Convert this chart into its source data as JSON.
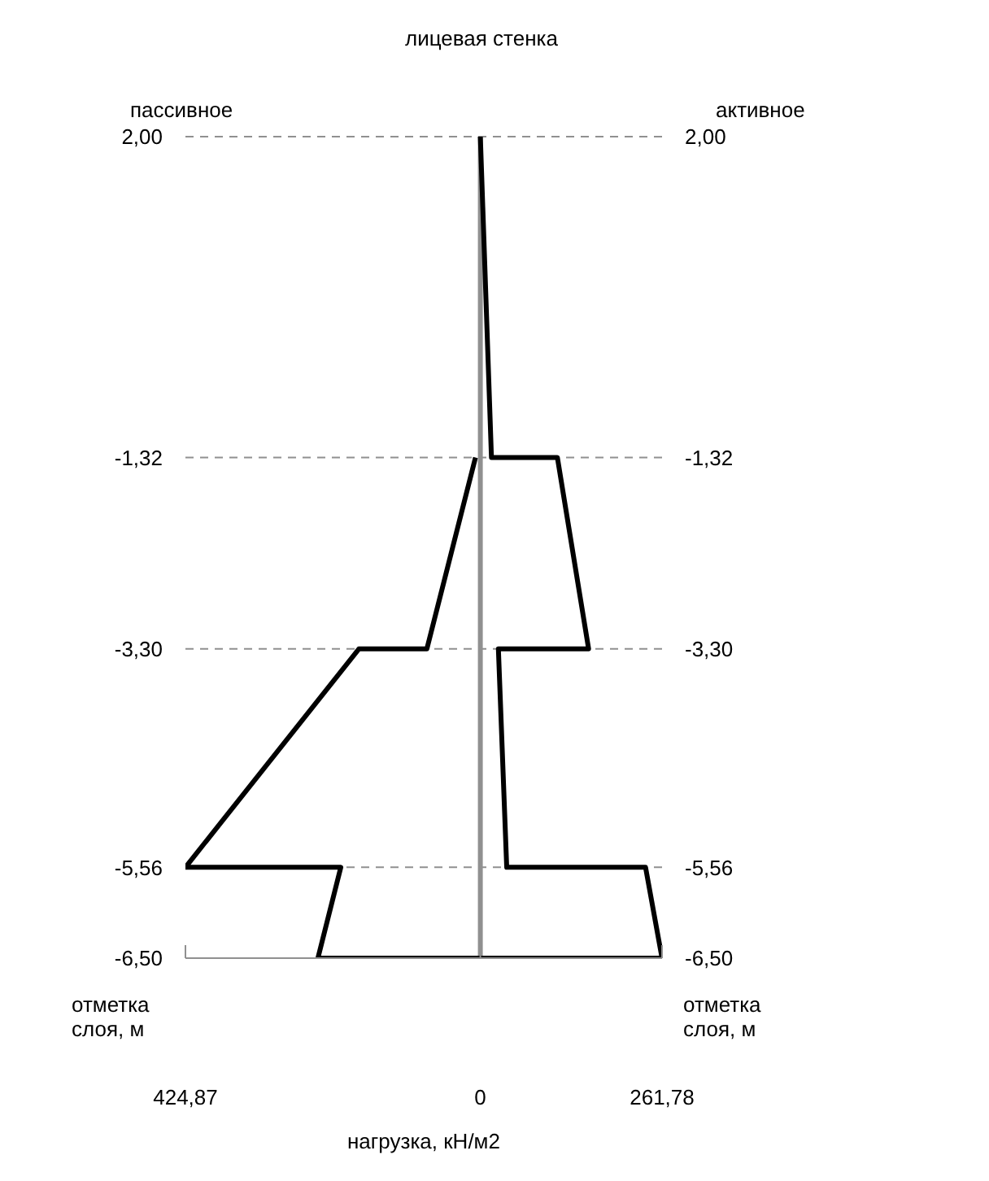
{
  "chart_data": {
    "type": "line",
    "title": "лицевая стенка",
    "xlabel": "нагрузка, кН/м2",
    "ylabel": "отметка слоя, м",
    "y2label": "отметка слоя, м",
    "annotations": [
      "пассивное",
      "активное"
    ],
    "series": [
      {
        "color": "#000000",
        "x": [
          0,
          16,
          111,
          156,
          26,
          38,
          238,
          261.78,
          -234,
          -201,
          -424.87,
          -175,
          -77,
          -7
        ],
        "values": [
          2,
          -1.32,
          -1.32,
          -3.3,
          -3.3,
          -5.56,
          -5.56,
          -6.5,
          -6.5,
          -5.56,
          -5.56,
          -3.3,
          -3.3,
          -1.32
        ]
      }
    ],
    "xlim": [
      -424.87,
      261.78
    ],
    "xticks": [
      {
        "value": -424.87,
        "label": "424,87"
      },
      {
        "value": 0,
        "label": "0"
      },
      {
        "value": 261.78,
        "label": "261,78"
      }
    ],
    "ylim": [
      -6.5,
      2
    ],
    "yticks": [
      {
        "value": 2,
        "label": "2,00"
      },
      {
        "value": -1.32,
        "label": "-1,32"
      },
      {
        "value": -3.3,
        "label": "-3,30"
      },
      {
        "value": -5.56,
        "label": "-5,56"
      },
      {
        "value": -6.5,
        "label": "-6,50"
      }
    ],
    "y2lim": [
      -6.5,
      2
    ],
    "y2ticks": [
      {
        "value": 2,
        "label": "2,00"
      },
      {
        "value": -1.32,
        "label": "-1,32"
      },
      {
        "value": -3.3,
        "label": "-3,30"
      },
      {
        "value": -5.56,
        "label": "-5,56"
      },
      {
        "value": -6.5,
        "label": "-6,50"
      }
    ],
    "ref_lines": [
      {
        "axis": "x",
        "value": 0,
        "color": "#909090"
      }
    ],
    "grid": "y",
    "line_style": "solid",
    "marker": "none"
  }
}
